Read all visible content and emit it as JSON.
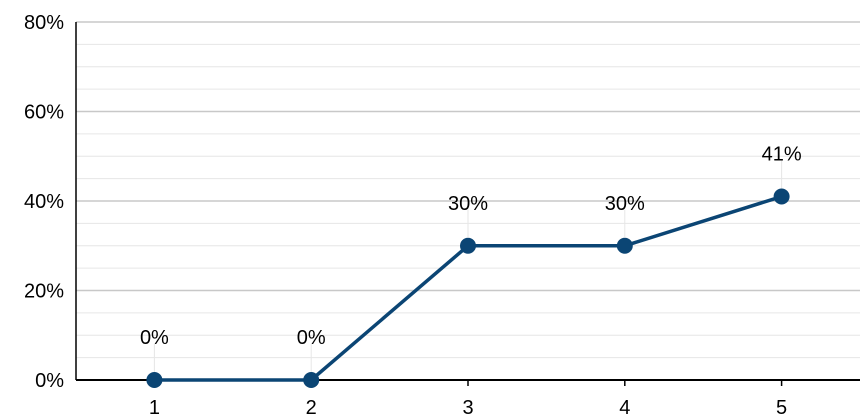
{
  "chart_data": {
    "type": "line",
    "title": "",
    "xlabel": "",
    "ylabel": "",
    "x": [
      "1",
      "2",
      "3",
      "4",
      "5"
    ],
    "series": [
      {
        "values": [
          0,
          0,
          30,
          30,
          41
        ]
      }
    ],
    "data_labels": [
      "0%",
      "0%",
      "30%",
      "30%",
      "41%"
    ],
    "y_ticks": [
      {
        "value": 0,
        "label": "0%"
      },
      {
        "value": 20,
        "label": "20%"
      },
      {
        "value": 40,
        "label": "40%"
      },
      {
        "value": 60,
        "label": "60%"
      },
      {
        "value": 80,
        "label": "80%"
      }
    ],
    "ylim": [
      0,
      80
    ],
    "minor_grid_step": 5,
    "grid": true,
    "legend": "none",
    "colors": {
      "line": "#0b4574",
      "marker": "#0b4574",
      "grid_major": "#c8c8c8",
      "grid_minor": "#e6e6e6",
      "axis": "#000000"
    }
  }
}
